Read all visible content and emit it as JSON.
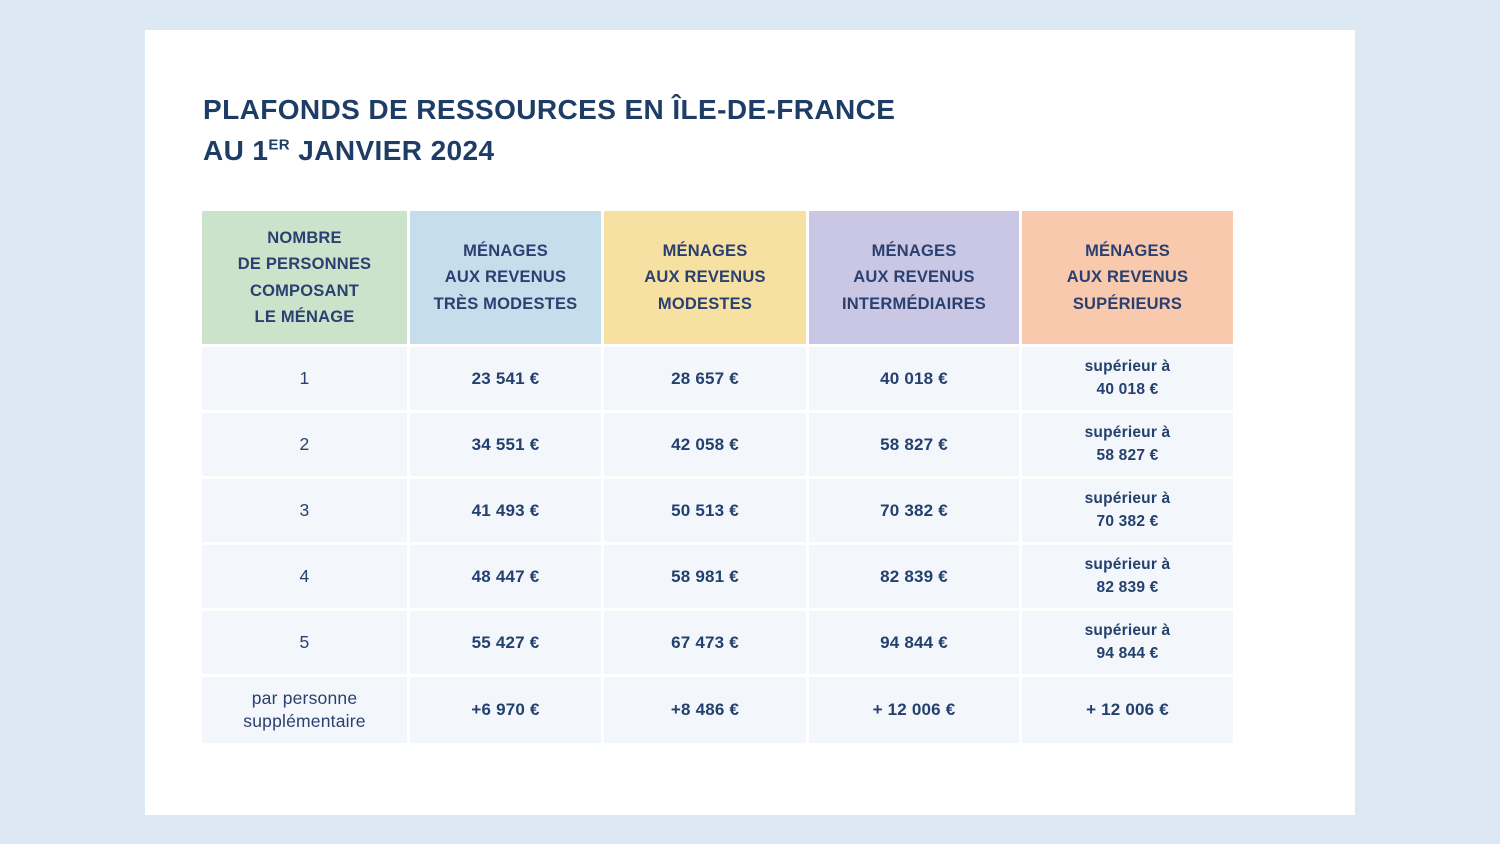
{
  "header": {
    "title_line1": "PLAFONDS DE RESSOURCES EN ÎLE-DE-FRANCE",
    "title_line2_prefix": "AU 1",
    "title_line2_sup": "ER",
    "title_line2_suffix": " JANVIER 2024"
  },
  "colors": {
    "page_background": "#dce8f4",
    "card_background": "#ffffff",
    "title_text": "#1d3c66",
    "body_text": "#24406e",
    "row_background": "#f3f7fb"
  },
  "table": {
    "headers": [
      {
        "label": "NOMBRE\nDE PERSONNES\nCOMPOSANT\nLE MÉNAGE",
        "bg": "#cbe3cb"
      },
      {
        "label": "MÉNAGES\nAUX REVENUS\nTRÈS MODESTES",
        "bg": "#c6ddec"
      },
      {
        "label": "MÉNAGES\nAUX REVENUS\nMODESTES",
        "bg": "#f6e1a2"
      },
      {
        "label": "MÉNAGES\nAUX REVENUS\nINTERMÉDIAIRES",
        "bg": "#c9c7e4"
      },
      {
        "label": "MÉNAGES\nAUX REVENUS\nSUPÉRIEURS",
        "bg": "#f9c9ad"
      }
    ],
    "rows": [
      {
        "n": "1",
        "tres": "23 541 €",
        "mod": "28 657 €",
        "inter": "40 018 €",
        "sup_prefix": "supérieur à",
        "sup_value": "40 018 €"
      },
      {
        "n": "2",
        "tres": "34 551 €",
        "mod": "42 058 €",
        "inter": "58 827 €",
        "sup_prefix": "supérieur à",
        "sup_value": "58 827 €"
      },
      {
        "n": "3",
        "tres": "41 493 €",
        "mod": "50 513 €",
        "inter": "70 382 €",
        "sup_prefix": "supérieur à",
        "sup_value": "70 382 €"
      },
      {
        "n": "4",
        "tres": "48 447 €",
        "mod": "58 981 €",
        "inter": "82 839 €",
        "sup_prefix": "supérieur à",
        "sup_value": "82 839 €"
      },
      {
        "n": "5",
        "tres": "55 427 €",
        "mod": "67 473 €",
        "inter": "94 844 €",
        "sup_prefix": "supérieur à",
        "sup_value": "94 844 €"
      },
      {
        "n": "par personne\nsupplémentaire",
        "tres": "+6 970 €",
        "mod": "+8 486 €",
        "inter": "+ 12 006 €",
        "sup_single": "+ 12 006 €"
      }
    ]
  },
  "chart_data": {
    "type": "table",
    "title": "Plafonds de ressources en Île-de-France au 1er janvier 2024",
    "columns": [
      "Nombre de personnes composant le ménage",
      "Ménages aux revenus très modestes",
      "Ménages aux revenus modestes",
      "Ménages aux revenus intermédiaires",
      "Ménages aux revenus supérieurs"
    ],
    "rows": [
      [
        "1",
        "23 541 €",
        "28 657 €",
        "40 018 €",
        "supérieur à 40 018 €"
      ],
      [
        "2",
        "34 551 €",
        "42 058 €",
        "58 827 €",
        "supérieur à 58 827 €"
      ],
      [
        "3",
        "41 493 €",
        "50 513 €",
        "70 382 €",
        "supérieur à 70 382 €"
      ],
      [
        "4",
        "48 447 €",
        "58 981 €",
        "82 839 €",
        "supérieur à 82 839 €"
      ],
      [
        "5",
        "55 427 €",
        "67 473 €",
        "94 844 €",
        "supérieur à 94 844 €"
      ],
      [
        "par personne supplémentaire",
        "+6 970 €",
        "+8 486 €",
        "+ 12 006 €",
        "+ 12 006 €"
      ]
    ]
  }
}
